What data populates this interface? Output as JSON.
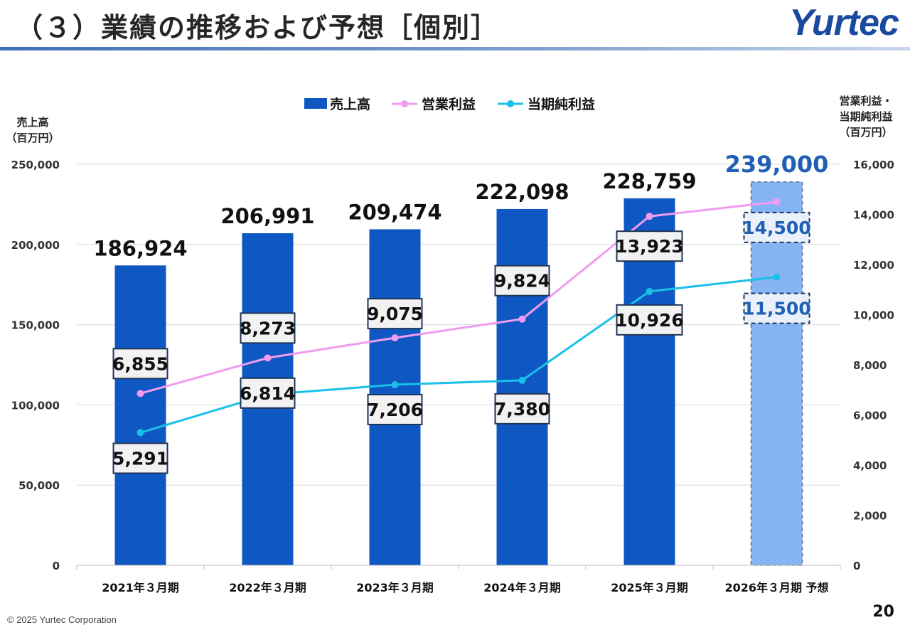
{
  "header": {
    "title": "（３）業績の推移および予想［個別］",
    "logo_text": "Yurtec"
  },
  "footer": {
    "copyright": "© 2025 Yurtec Corporation",
    "page_number": "20"
  },
  "colors": {
    "bar": "#0f57c2",
    "bar_forecast": "#86b3f3",
    "operating_profit_line": "#f19cf0",
    "net_income_line": "#19c0e8",
    "forecast_text": "#1f5fb4",
    "grid": "#d9d9d9"
  },
  "chart_data": {
    "type": "bar",
    "categories": [
      "2021年３月期",
      "2022年３月期",
      "2023年３月期",
      "2024年３月期",
      "2025年３月期",
      "2026年３月期 予想"
    ],
    "forecast_index": 5,
    "series": [
      {
        "name": "売上高",
        "type": "bar",
        "axis": "left",
        "values": [
          186924,
          206991,
          209474,
          222098,
          228759,
          239000
        ],
        "labels": [
          "186,924",
          "206,991",
          "209,474",
          "222,098",
          "228,759",
          "239,000"
        ]
      },
      {
        "name": "営業利益",
        "type": "line",
        "axis": "right",
        "values": [
          6855,
          8273,
          9075,
          9824,
          13923,
          14500
        ],
        "labels": [
          "6,855",
          "8,273",
          "9,075",
          "9,824",
          "13,923",
          "14,500"
        ]
      },
      {
        "name": "当期純利益",
        "type": "line",
        "axis": "right",
        "values": [
          5291,
          6814,
          7206,
          7380,
          10926,
          11500
        ],
        "labels": [
          "5,291",
          "6,814",
          "7,206",
          "7,380",
          "10,926",
          "11,500"
        ]
      }
    ],
    "y_left": {
      "label_lines": [
        "売上高",
        "（百万円）"
      ],
      "ylim": [
        0,
        250000
      ],
      "ticks": [
        0,
        50000,
        100000,
        150000,
        200000,
        250000
      ],
      "tick_labels": [
        "0",
        "50,000",
        "100,000",
        "150,000",
        "200,000",
        "250,000"
      ]
    },
    "y_right": {
      "label_lines": [
        "営業利益・",
        "当期純利益",
        "（百万円）"
      ],
      "ylim": [
        0,
        16000
      ],
      "ticks": [
        0,
        2000,
        4000,
        6000,
        8000,
        10000,
        12000,
        14000,
        16000
      ],
      "tick_labels": [
        "0",
        "2,000",
        "4,000",
        "6,000",
        "8,000",
        "10,000",
        "12,000",
        "14,000",
        "16,000"
      ]
    },
    "legend": {
      "position": "top-center",
      "items": [
        "売上高",
        "営業利益",
        "当期純利益"
      ]
    },
    "grid": true
  }
}
